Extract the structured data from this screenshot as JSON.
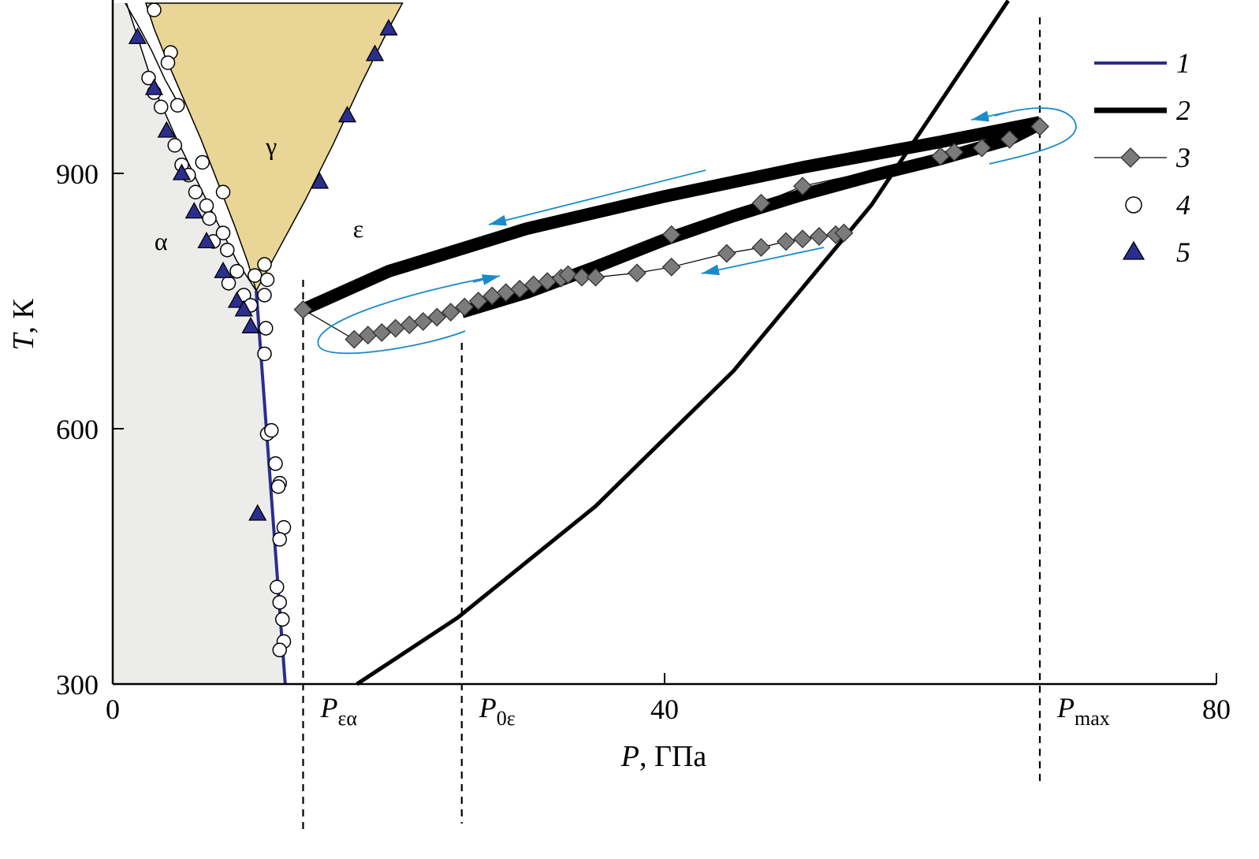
{
  "chart_data": {
    "type": "scatter",
    "xlabel": {
      "var": "P",
      "unit": ", ГПа"
    },
    "ylabel": {
      "var": "T",
      "unit": ", К"
    },
    "xlim": [
      0,
      80
    ],
    "ylim": [
      300,
      1100
    ],
    "xticks": [
      "0",
      "40",
      "80"
    ],
    "yticks": [
      "300",
      "600",
      "900"
    ],
    "phase_labels": [
      "α",
      "γ",
      "ε"
    ],
    "region_colors": {
      "alpha": "#ececea",
      "gamma": "#e9d595",
      "boundary_1": "#2b2e8e",
      "arrows": "#1a8acb"
    },
    "vlines": [
      {
        "P": 13.8,
        "label": {
          "main": "P",
          "sub": "εα"
        }
      },
      {
        "P": 25.3,
        "label": {
          "main": "P",
          "sub": "0ε"
        }
      },
      {
        "P": 67.2,
        "label": {
          "main": "P",
          "sub": "max"
        }
      }
    ],
    "legend": [
      "1",
      "2",
      "3",
      "4",
      "5"
    ],
    "series": [
      {
        "name": "1",
        "style": "line",
        "x": [
          10.4,
          12.5
        ],
        "y": [
          762,
          300
        ]
      },
      {
        "name": "2",
        "style": "thick-band",
        "x": [
          13.8,
          20,
          30,
          40,
          50,
          60,
          67.2
        ],
        "y": [
          740,
          785,
          835,
          873,
          907,
          937,
          960
        ]
      },
      {
        "name": "2",
        "style": "thick-band",
        "x": [
          25.3,
          30,
          35,
          40,
          45,
          50,
          55,
          60,
          65,
          67.2
        ],
        "y": [
          737,
          760,
          790,
          822,
          850,
          875,
          897,
          917,
          940,
          958
        ]
      },
      {
        "name": "2",
        "style": "line",
        "x": [
          17.7,
          25,
          35,
          45,
          55,
          64.9
        ],
        "y": [
          300,
          378,
          509,
          668,
          863,
          1103
        ]
      },
      {
        "name": "3",
        "x": [
          13.8,
          17.5,
          18.5,
          19.5,
          20.5,
          21.5,
          22.5,
          23.5,
          24.5,
          25.5,
          26.5,
          27.5,
          28.5,
          29.5,
          30.5,
          31.5,
          32.5,
          33.0,
          34.0,
          35.0,
          38.0,
          40.5,
          44.5,
          47.0,
          48.8,
          50.0,
          51.2,
          52.4,
          53.0,
          40.5,
          47.0,
          50.0,
          60.0,
          61.0,
          63.0,
          65.0,
          67.2
        ],
        "y": [
          740,
          705,
          710,
          713,
          718,
          722,
          726,
          731,
          737,
          743,
          750,
          756,
          760,
          764,
          769,
          773,
          777,
          781,
          778,
          778,
          783,
          790,
          806,
          813,
          820,
          823,
          826,
          828,
          830,
          828,
          865,
          885,
          920,
          925,
          930,
          940,
          955
        ]
      },
      {
        "name": "4",
        "x": [
          3.0,
          2.6,
          3.0,
          3.5,
          4.2,
          4.5,
          4.0,
          4.7,
          5.0,
          5.5,
          6.0,
          6.5,
          6.8,
          7.0,
          7.3,
          8.0,
          8.0,
          8.3,
          8.4,
          9.0,
          9.5,
          10.0,
          10.3,
          11.0,
          11.2,
          11.0,
          11.1,
          11.0,
          11.2,
          11.5,
          11.8,
          12.1,
          12.0,
          12.4,
          12.1,
          11.9,
          12.1,
          12.3,
          12.4,
          12.1
        ],
        "y": [
          1092,
          1012,
          995,
          978,
          1042,
          933,
          1030,
          980,
          910,
          898,
          878,
          913,
          862,
          847,
          820,
          878,
          830,
          810,
          771,
          785,
          757,
          745,
          780,
          793,
          775,
          757,
          718,
          688,
          594,
          598,
          559,
          536,
          532,
          484,
          470,
          414,
          396,
          376,
          350,
          340
        ]
      },
      {
        "name": "5",
        "x": [
          1.8,
          3.0,
          3.9,
          5.0,
          5.9,
          6.8,
          8.0,
          9.0,
          9.5,
          10.0,
          10.5,
          15.0,
          17.0,
          19.0,
          20.0
        ],
        "y": [
          1060,
          1000,
          950,
          900,
          855,
          820,
          785,
          750,
          740,
          720,
          500,
          890,
          968,
          1040,
          1070
        ]
      }
    ]
  }
}
